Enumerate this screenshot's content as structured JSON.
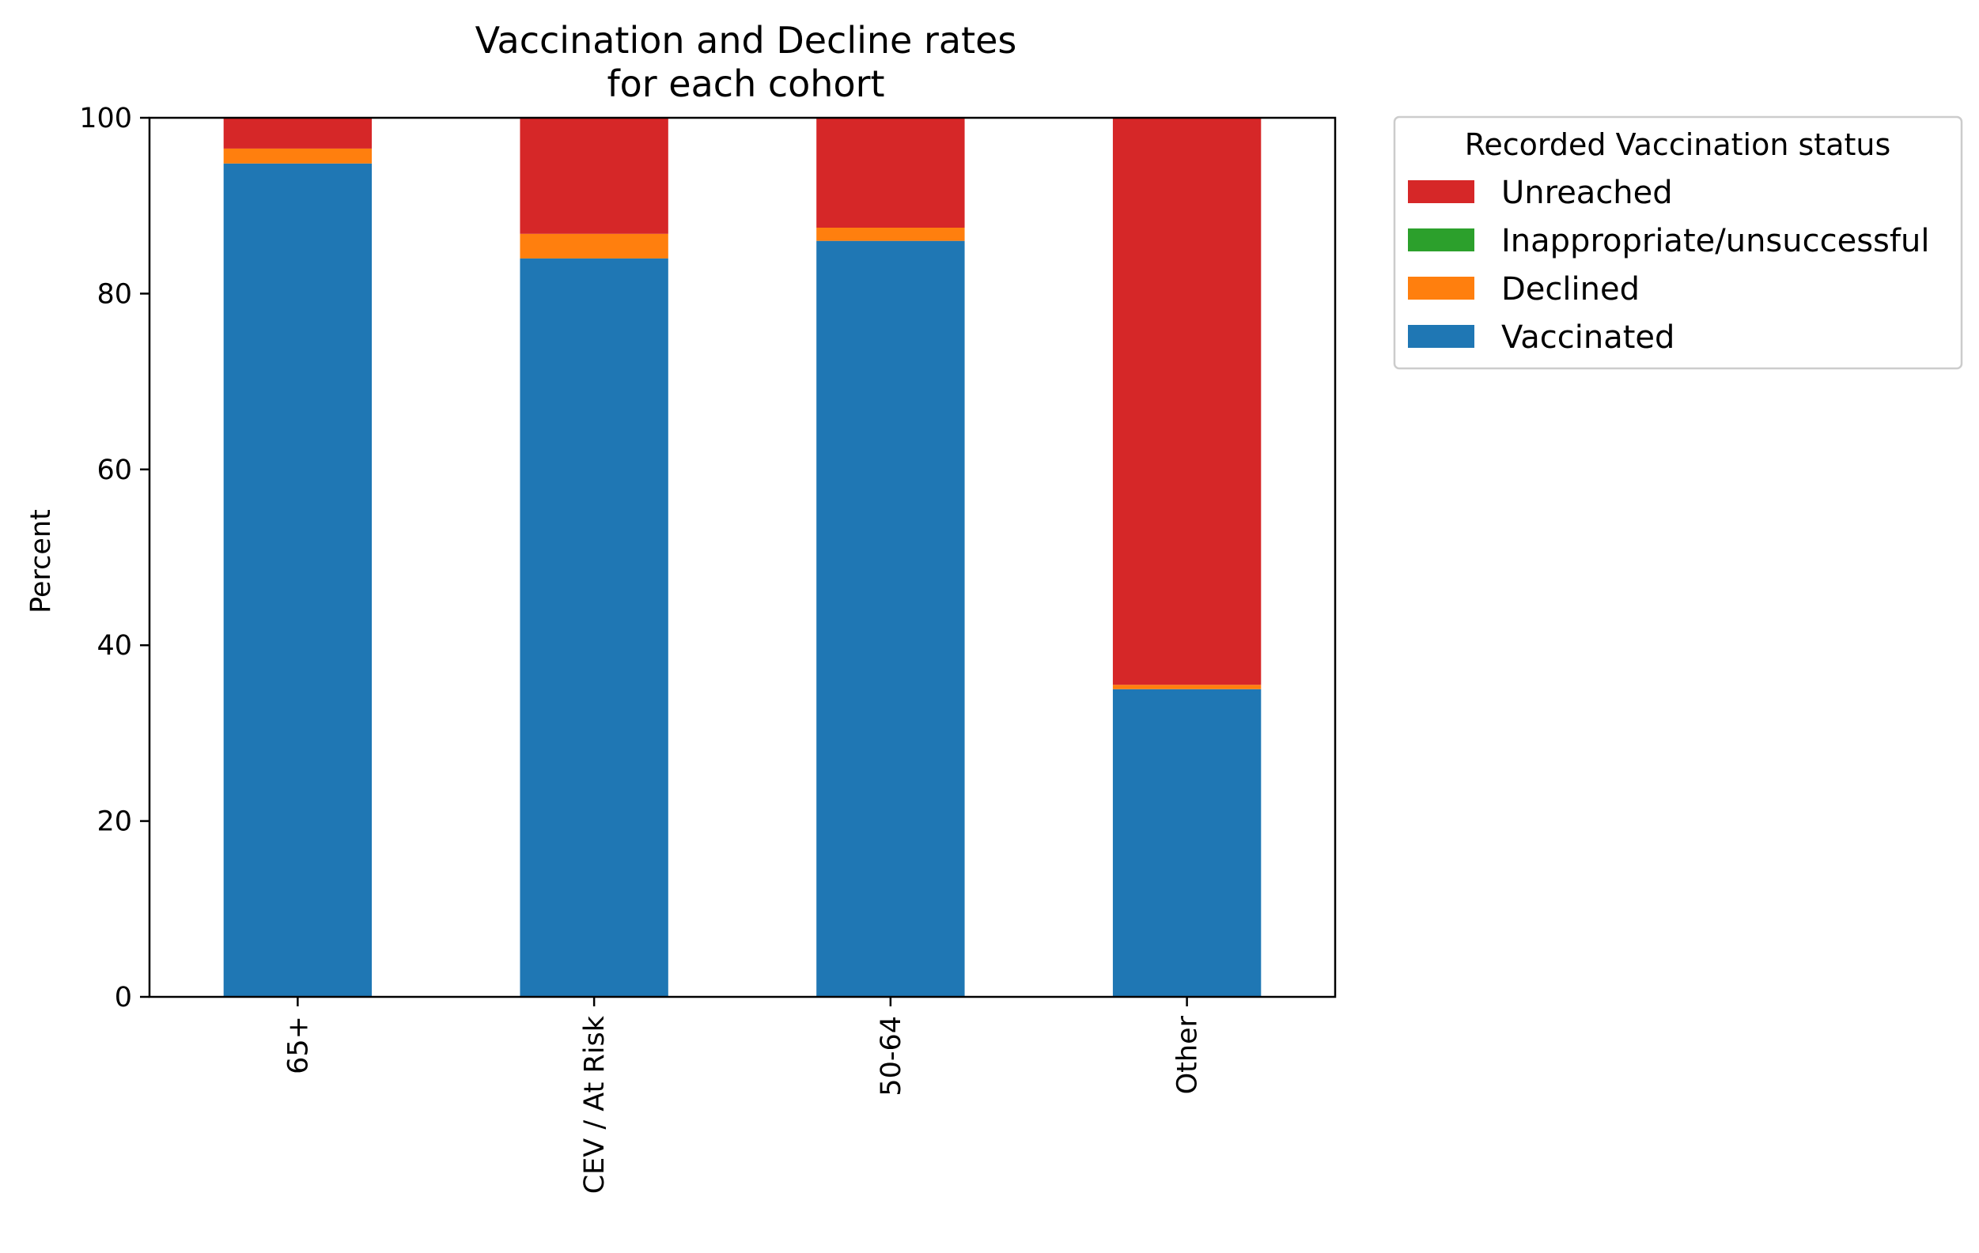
{
  "chart_data": {
    "type": "bar",
    "stacked": true,
    "title": "Vaccination and Decline rates",
    "subtitle": "for each cohort",
    "xlabel": "",
    "ylabel": "Percent",
    "ylim": [
      0,
      100
    ],
    "yticks": [
      "0",
      "20",
      "40",
      "60",
      "80",
      "100"
    ],
    "categories": [
      "65+",
      "CEV / At Risk",
      "50-64",
      "Other"
    ],
    "legend_title": "Recorded Vaccination status",
    "legend_position": "outside-right-top",
    "grid": false,
    "series": [
      {
        "name": "Vaccinated",
        "color": "#1f77b4",
        "values": [
          94.8,
          84.0,
          86.0,
          35.0
        ]
      },
      {
        "name": "Declined",
        "color": "#ff7f0e",
        "values": [
          1.7,
          2.8,
          1.5,
          0.5
        ]
      },
      {
        "name": "Inappropriate/unsuccessful",
        "color": "#2ca02c",
        "values": [
          0.0,
          0.0,
          0.0,
          0.0
        ]
      },
      {
        "name": "Unreached",
        "color": "#d62728",
        "values": [
          3.5,
          13.2,
          12.5,
          64.5
        ]
      }
    ],
    "legend_order": [
      "Unreached",
      "Inappropriate/unsuccessful",
      "Declined",
      "Vaccinated"
    ]
  }
}
